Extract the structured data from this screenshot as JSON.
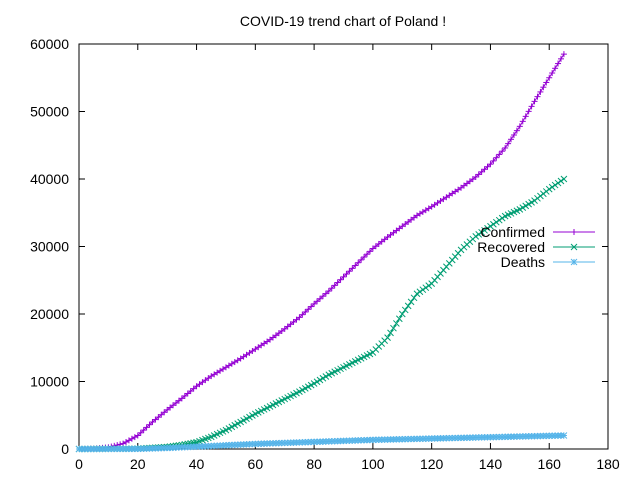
{
  "chart_data": {
    "type": "line",
    "title": "COVID-19 trend chart of Poland !",
    "xlabel": "",
    "ylabel": "",
    "xlim": [
      0,
      180
    ],
    "ylim": [
      0,
      60000
    ],
    "xticks": [
      0,
      20,
      40,
      60,
      80,
      100,
      120,
      140,
      160,
      180
    ],
    "yticks": [
      0,
      10000,
      20000,
      30000,
      40000,
      50000,
      60000
    ],
    "grid": false,
    "legend_position": "right",
    "series": [
      {
        "name": "Confirmed",
        "color": "#9400d3",
        "marker": "plus",
        "points": [
          [
            0,
            0
          ],
          [
            5,
            50
          ],
          [
            10,
            250
          ],
          [
            15,
            800
          ],
          [
            20,
            2000
          ],
          [
            25,
            4000
          ],
          [
            30,
            5800
          ],
          [
            35,
            7500
          ],
          [
            40,
            9300
          ],
          [
            45,
            10800
          ],
          [
            50,
            12100
          ],
          [
            55,
            13400
          ],
          [
            60,
            14800
          ],
          [
            65,
            16200
          ],
          [
            70,
            17800
          ],
          [
            75,
            19500
          ],
          [
            80,
            21500
          ],
          [
            85,
            23400
          ],
          [
            90,
            25500
          ],
          [
            95,
            27600
          ],
          [
            100,
            29700
          ],
          [
            105,
            31400
          ],
          [
            110,
            33000
          ],
          [
            115,
            34600
          ],
          [
            120,
            35900
          ],
          [
            125,
            37300
          ],
          [
            130,
            38700
          ],
          [
            135,
            40300
          ],
          [
            140,
            42200
          ],
          [
            145,
            44600
          ],
          [
            150,
            47800
          ],
          [
            155,
            51500
          ],
          [
            160,
            55000
          ],
          [
            165,
            58500
          ]
        ]
      },
      {
        "name": "Recovered",
        "color": "#009e73",
        "marker": "x",
        "points": [
          [
            0,
            0
          ],
          [
            20,
            50
          ],
          [
            30,
            300
          ],
          [
            35,
            600
          ],
          [
            40,
            1000
          ],
          [
            45,
            1800
          ],
          [
            50,
            2800
          ],
          [
            55,
            4000
          ],
          [
            60,
            5200
          ],
          [
            65,
            6300
          ],
          [
            70,
            7400
          ],
          [
            75,
            8500
          ],
          [
            80,
            9700
          ],
          [
            85,
            11000
          ],
          [
            90,
            12100
          ],
          [
            95,
            13200
          ],
          [
            100,
            14300
          ],
          [
            105,
            16500
          ],
          [
            110,
            20000
          ],
          [
            115,
            23000
          ],
          [
            120,
            24500
          ],
          [
            125,
            27000
          ],
          [
            130,
            29500
          ],
          [
            135,
            31500
          ],
          [
            140,
            33000
          ],
          [
            145,
            34500
          ],
          [
            150,
            35500
          ],
          [
            155,
            36800
          ],
          [
            160,
            38500
          ],
          [
            165,
            40000
          ]
        ]
      },
      {
        "name": "Deaths",
        "color": "#56b4e9",
        "marker": "star",
        "points": [
          [
            0,
            0
          ],
          [
            20,
            20
          ],
          [
            30,
            150
          ],
          [
            40,
            350
          ],
          [
            50,
            550
          ],
          [
            60,
            750
          ],
          [
            70,
            900
          ],
          [
            80,
            1050
          ],
          [
            90,
            1200
          ],
          [
            100,
            1350
          ],
          [
            110,
            1450
          ],
          [
            120,
            1550
          ],
          [
            130,
            1650
          ],
          [
            140,
            1750
          ],
          [
            150,
            1850
          ],
          [
            160,
            1950
          ],
          [
            165,
            2000
          ]
        ]
      }
    ]
  }
}
